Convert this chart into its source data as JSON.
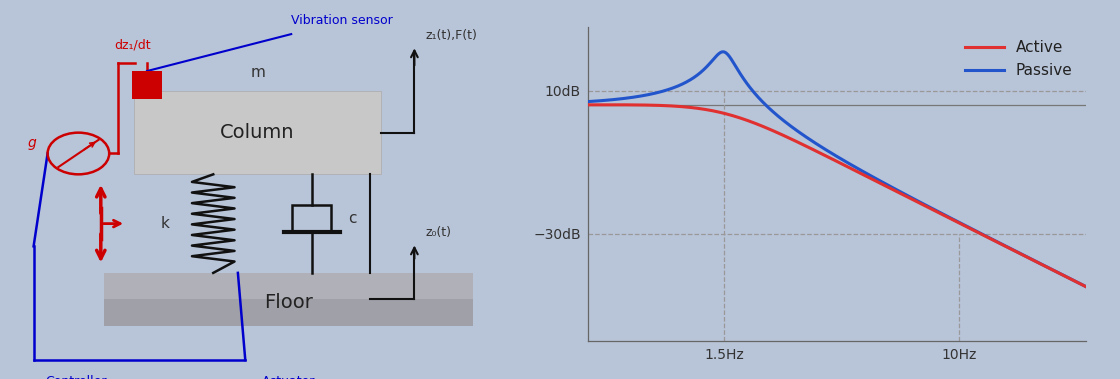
{
  "bg_color": "#b8c4d8",
  "fig_width": 11.2,
  "fig_height": 3.79,
  "plot": {
    "freq_min": 0.5,
    "freq_max": 28,
    "f0": 1.5,
    "f1": 10.0,
    "active_color": "#e03030",
    "passive_color": "#2255cc",
    "grid_color": "#999999",
    "ref_line_color": "#777777",
    "legend_active": "Active",
    "legend_passive": "Passive",
    "xlabel_1": "1.5Hz",
    "xlabel_2": "10Hz",
    "ylabel_10": "10dB",
    "ylabel_m30": "−30dB",
    "zeta_passive": 0.09,
    "zeta_active": 0.65,
    "baseline_dB": 6.0,
    "ylim_low": -60,
    "ylim_high": 28
  }
}
